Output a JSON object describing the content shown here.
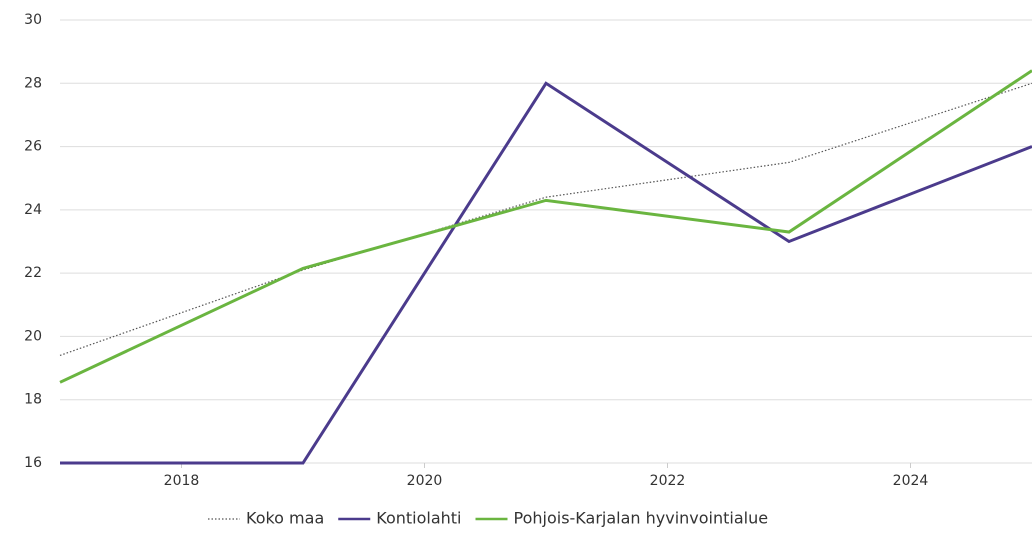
{
  "chart_data": {
    "type": "line",
    "x": [
      2017,
      2019,
      2021,
      2023,
      2025
    ],
    "series": [
      {
        "name": "Koko maa",
        "color": "#555555",
        "dash": "dotted",
        "values": [
          19.4,
          22.1,
          24.4,
          25.5,
          28.0
        ]
      },
      {
        "name": "Kontiolahti",
        "color": "#4b3b8c",
        "values": [
          16,
          16,
          28,
          23,
          26
        ]
      },
      {
        "name": "Pohjois-Karjalan hyvinvointialue",
        "color": "#6ab540",
        "values": [
          18.55,
          22.15,
          24.3,
          23.3,
          28.4
        ]
      }
    ],
    "xlim": [
      2017,
      2025
    ],
    "xticks": [
      2018,
      2020,
      2022,
      2024
    ],
    "ylim": [
      16,
      30
    ],
    "yticks": [
      16,
      18,
      20,
      22,
      24,
      26,
      28,
      30
    ],
    "grid": true,
    "legend": "bottom"
  }
}
